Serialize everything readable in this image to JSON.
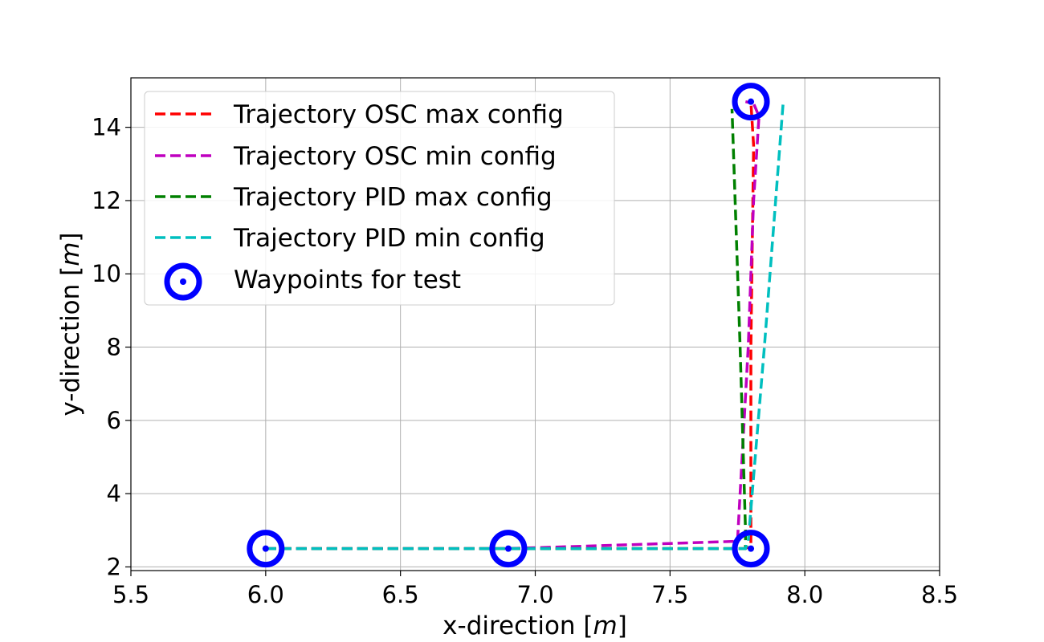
{
  "chart_data": {
    "type": "line",
    "title": "",
    "xlabel": "x-direction [",
    "xlabel_unit": "m",
    "xlabel_close": "]",
    "ylabel": "y-direction [",
    "ylabel_unit": "m",
    "ylabel_close": "]",
    "xlim": [
      5.5,
      8.5
    ],
    "ylim": [
      1.9,
      15.35
    ],
    "xticks": [
      "5.5",
      "6.0",
      "6.5",
      "7.0",
      "7.5",
      "8.0",
      "8.5"
    ],
    "yticks": [
      "2",
      "4",
      "6",
      "8",
      "10",
      "12",
      "14"
    ],
    "grid": true,
    "legend_position": "upper-left",
    "series": [
      {
        "name": "Trajectory OSC max config",
        "color": "#ff0000",
        "style": "dashed",
        "x": [
          6.0,
          6.9,
          7.78,
          7.8,
          7.8,
          7.81,
          7.8
        ],
        "y": [
          2.5,
          2.5,
          2.5,
          2.6,
          8.0,
          13.5,
          14.7
        ]
      },
      {
        "name": "Trajectory OSC min config",
        "color": "#bf00bf",
        "style": "dashed",
        "x": [
          6.0,
          6.9,
          7.75,
          7.79,
          7.81,
          7.83,
          7.81,
          7.78
        ],
        "y": [
          2.5,
          2.5,
          2.7,
          8.0,
          12.0,
          14.3,
          14.65,
          14.7
        ]
      },
      {
        "name": "Trajectory PID max config",
        "color": "#008000",
        "style": "dashed",
        "x": [
          6.0,
          6.9,
          7.78,
          7.78,
          7.76,
          7.73
        ],
        "y": [
          2.5,
          2.5,
          2.5,
          3.0,
          8.0,
          14.5
        ]
      },
      {
        "name": "Trajectory PID min config",
        "color": "#00bfbf",
        "style": "dashed",
        "x": [
          6.0,
          6.9,
          7.78,
          7.79,
          7.85,
          7.92
        ],
        "y": [
          2.5,
          2.5,
          2.5,
          2.7,
          8.0,
          14.7
        ]
      }
    ],
    "waypoints": {
      "name": "Waypoints for test",
      "color": "#0000ff",
      "x": [
        6.0,
        6.9,
        7.8,
        7.8
      ],
      "y": [
        2.5,
        2.5,
        2.5,
        14.7
      ]
    }
  }
}
